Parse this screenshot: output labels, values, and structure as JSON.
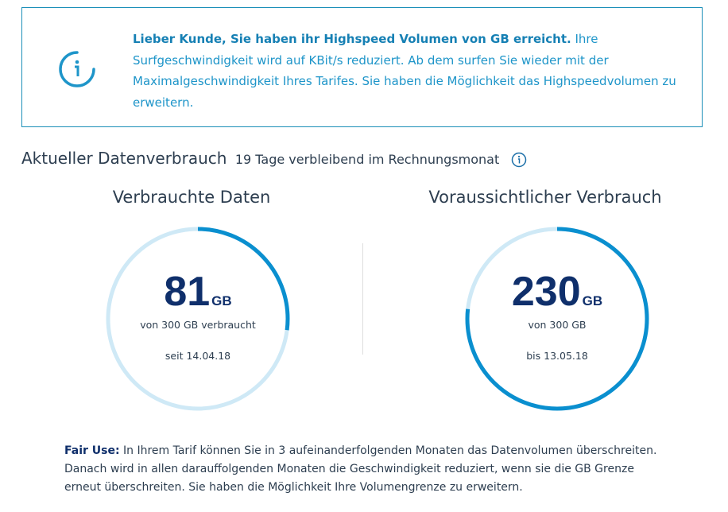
{
  "notice": {
    "bold": "Lieber Kunde, Sie haben ihr Highspeed Volumen von GB erreicht.",
    "text": " Ihre Surfgeschwindigkeit wird auf KBit/s reduziert. Ab dem  surfen Sie wieder mit der Maximalgeschwindigkeit Ihres Tarifes. Sie haben die Möglichkeit das Highspeedvolumen zu erweitern."
  },
  "heading": {
    "title": "Aktueller Datenverbrauch",
    "sub": "19 Tage verbleibend im Rechnungsmonat"
  },
  "used": {
    "title": "Verbrauchte Daten",
    "value": "81",
    "unit": "GB",
    "of": "von 300 GB verbraucht",
    "date": "seit 14.04.18",
    "fraction": 0.27
  },
  "forecast": {
    "title": "Voraussichtlicher Verbrauch",
    "value": "230",
    "unit": "GB",
    "of": "von 300 GB",
    "date": "bis 13.05.18",
    "fraction": 0.767
  },
  "fair_use": {
    "label": "Fair Use:",
    "text": " In Ihrem Tarif können Sie in 3 aufeinanderfolgenden Monaten das Datenvolumen überschreiten. Danach wird in allen darauffolgenden Monaten die Geschwindigkeit reduziert, wenn sie die GB Grenze erneut überschreiten. Sie haben die Möglichkeit Ihre Volumengrenze zu erweitern."
  },
  "colors": {
    "accent": "#0a8fcf",
    "track": "#cfe9f6",
    "dark": "#0f2f6b"
  }
}
